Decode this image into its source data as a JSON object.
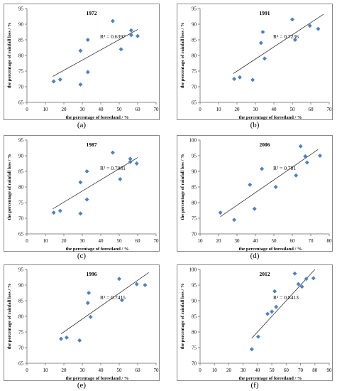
{
  "chart_data": [
    {
      "type": "scatter",
      "title": "1972",
      "caption": "(a)",
      "xlabel": "the percentage of forestland / %",
      "ylabel": "the percentage of rainfall loss / %",
      "xlim": [
        0,
        70
      ],
      "ylim": [
        65,
        95
      ],
      "xticks": [
        "0",
        "10",
        "20",
        "30",
        "40",
        "50",
        "60",
        "70"
      ],
      "yticks": [
        "65",
        "70",
        "75",
        "80",
        "85",
        "90",
        "95"
      ],
      "r2_label": "R² = 0.6397",
      "trendline": [
        [
          14,
          73.3
        ],
        [
          60,
          88.3
        ]
      ],
      "points": [
        [
          14.5,
          71.7
        ],
        [
          18,
          72.3
        ],
        [
          29,
          81.5
        ],
        [
          29,
          70.7
        ],
        [
          33,
          85
        ],
        [
          33,
          74.7
        ],
        [
          46.5,
          91
        ],
        [
          51,
          82
        ],
        [
          56.5,
          88
        ],
        [
          56.5,
          86.5
        ],
        [
          60,
          86.2
        ]
      ]
    },
    {
      "type": "scatter",
      "title": "1991",
      "caption": "(b)",
      "xlabel": "the percentage of forestland / %",
      "ylabel": "the percentage of rainfall loss / %",
      "xlim": [
        0,
        70
      ],
      "ylim": [
        65,
        95
      ],
      "xticks": [
        "0",
        "10",
        "20",
        "30",
        "40",
        "50",
        "60",
        "70"
      ],
      "yticks": [
        "65",
        "70",
        "75",
        "80",
        "85",
        "90",
        "95"
      ],
      "r2_label": "R² = 0.7236",
      "trendline": [
        [
          18,
          74.2
        ],
        [
          67,
          93.2
        ]
      ],
      "points": [
        [
          18.5,
          72.5
        ],
        [
          21.5,
          73
        ],
        [
          28.5,
          72.2
        ],
        [
          33,
          84
        ],
        [
          34,
          87.5
        ],
        [
          35,
          79
        ],
        [
          50,
          91.5
        ],
        [
          51.5,
          85
        ],
        [
          59.5,
          89.5
        ],
        [
          64,
          88.5
        ]
      ]
    },
    {
      "type": "scatter",
      "title": "1987",
      "caption": "(c)",
      "xlabel": "the percentage of forestland / %",
      "ylabel": "the percentage of rainfall loss / %",
      "xlim": [
        0,
        70
      ],
      "ylim": [
        65,
        95
      ],
      "xticks": [
        "0",
        "10",
        "20",
        "30",
        "40",
        "50",
        "60",
        "70"
      ],
      "yticks": [
        "65",
        "70",
        "75",
        "80",
        "85",
        "90",
        "95"
      ],
      "r2_label": "R² = 0.7081",
      "trendline": [
        [
          14,
          73
        ],
        [
          60,
          89.4
        ]
      ],
      "points": [
        [
          14.5,
          71.8
        ],
        [
          18,
          72.4
        ],
        [
          29,
          81.5
        ],
        [
          29,
          71.5
        ],
        [
          32.5,
          85
        ],
        [
          32.5,
          76
        ],
        [
          46.5,
          91
        ],
        [
          50.5,
          82.5
        ],
        [
          56,
          89
        ],
        [
          56,
          88
        ],
        [
          59.5,
          87.5
        ]
      ]
    },
    {
      "type": "scatter",
      "title": "2006",
      "caption": "(d)",
      "xlabel": "the percentage of forestland / %",
      "ylabel": "the percentage of rainfall loss / %",
      "xlim": [
        10,
        80
      ],
      "ylim": [
        70,
        100
      ],
      "xticks": [
        "10",
        "20",
        "30",
        "40",
        "50",
        "60",
        "70",
        "80"
      ],
      "yticks": [
        "70",
        "75",
        "80",
        "85",
        "90",
        "95",
        "100"
      ],
      "r2_label": "R² = 0.781",
      "trendline": [
        [
          21,
          75.5
        ],
        [
          74,
          97
        ]
      ],
      "points": [
        [
          21,
          76.8
        ],
        [
          28.5,
          74.5
        ],
        [
          37,
          85.7
        ],
        [
          39.5,
          78
        ],
        [
          43.5,
          90.8
        ],
        [
          51,
          85
        ],
        [
          62,
          88.7
        ],
        [
          64.5,
          98
        ],
        [
          67,
          94.8
        ],
        [
          68,
          92.8
        ],
        [
          75,
          95
        ]
      ]
    },
    {
      "type": "scatter",
      "title": "1996",
      "caption": "(e)",
      "xlabel": "the percentage of forestland / %",
      "ylabel": "the percentage of rainfall loss / %",
      "xlim": [
        0,
        70
      ],
      "ylim": [
        65,
        95
      ],
      "xticks": [
        "0",
        "10",
        "20",
        "30",
        "40",
        "50",
        "60",
        "70"
      ],
      "yticks": [
        "65",
        "70",
        "75",
        "80",
        "85",
        "90",
        "95"
      ],
      "r2_label": "R² = 0.7415",
      "trendline": [
        [
          18.5,
          74.4
        ],
        [
          66,
          94
        ]
      ],
      "points": [
        [
          18.5,
          72.8
        ],
        [
          21.5,
          73.2
        ],
        [
          28.5,
          72.3
        ],
        [
          33,
          84.3
        ],
        [
          33.5,
          87.5
        ],
        [
          34.5,
          79.8
        ],
        [
          50,
          92
        ],
        [
          51.5,
          85.2
        ],
        [
          59.5,
          90.3
        ],
        [
          64,
          90
        ]
      ]
    },
    {
      "type": "scatter",
      "title": "2012",
      "caption": "(f)",
      "xlabel": "the percentage of forestland / %",
      "ylabel": "the percentage of rainfall loss / %",
      "xlim": [
        0,
        90
      ],
      "ylim": [
        70,
        100
      ],
      "xticks": [
        "0",
        "10",
        "20",
        "30",
        "40",
        "50",
        "60",
        "70",
        "80",
        "90"
      ],
      "yticks": [
        "70",
        "75",
        "80",
        "85",
        "90",
        "95",
        "100"
      ],
      "r2_label": "R² = 0.8413",
      "trendline": [
        [
          36,
          78
        ],
        [
          80,
          100
        ]
      ],
      "points": [
        [
          36,
          74.5
        ],
        [
          40.5,
          78.5
        ],
        [
          47,
          85.8
        ],
        [
          50,
          86.5
        ],
        [
          52,
          93
        ],
        [
          53,
          88
        ],
        [
          66,
          98.7
        ],
        [
          68.5,
          95.3
        ],
        [
          71,
          94.5
        ],
        [
          74,
          97
        ],
        [
          79,
          97.2
        ]
      ]
    }
  ]
}
